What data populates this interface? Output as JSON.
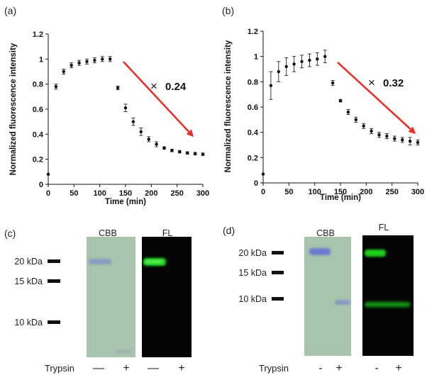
{
  "panels": {
    "a": "(a)",
    "b": "(b)",
    "c": "(c)",
    "d": "(d)"
  },
  "chart_data": [
    {
      "type": "scatter",
      "panel": "(a)",
      "xlabel": "Time (min)",
      "ylabel": "Normalized fluorescence intensity",
      "xlim": [
        0,
        300
      ],
      "ylim": [
        0,
        1.2
      ],
      "xticks": [
        "0",
        "50",
        "100",
        "150",
        "200",
        "250",
        "300"
      ],
      "yticks": [
        "0",
        "0.2",
        "0.4",
        "0.6",
        "0.8",
        "1",
        "1.2"
      ],
      "annotation": "0.24",
      "arrow_color": "#e8312a",
      "series": [
        {
          "x": [
            0,
            15,
            30,
            45,
            60,
            75,
            90,
            105,
            120,
            135,
            150,
            165,
            180,
            195,
            210,
            225,
            240,
            255,
            270,
            285,
            300
          ],
          "y": [
            0.08,
            0.78,
            0.9,
            0.95,
            0.97,
            0.98,
            0.99,
            1.0,
            1.0,
            0.77,
            0.61,
            0.5,
            0.42,
            0.36,
            0.32,
            0.29,
            0.27,
            0.26,
            0.25,
            0.245,
            0.24
          ],
          "err": [
            0,
            0.02,
            0.02,
            0.02,
            0.02,
            0.02,
            0.02,
            0.02,
            0.02,
            0.015,
            0.03,
            0.03,
            0.03,
            0.02,
            0.02,
            0.01,
            0.01,
            0.01,
            0.01,
            0.01,
            0.01
          ]
        }
      ]
    },
    {
      "type": "scatter",
      "panel": "(b)",
      "xlabel": "Time (min)",
      "ylabel": "Normalized fluorescence intensity",
      "xlim": [
        0,
        300
      ],
      "ylim": [
        0,
        1.2
      ],
      "xticks": [
        "0",
        "50",
        "100",
        "150",
        "200",
        "250",
        "300"
      ],
      "yticks": [
        "0",
        "0.2",
        "0.4",
        "0.6",
        "0.8",
        "1",
        "1.2"
      ],
      "annotation": "0.32",
      "arrow_color": "#e8312a",
      "series": [
        {
          "x": [
            0,
            15,
            30,
            45,
            60,
            75,
            90,
            105,
            120,
            135,
            150,
            165,
            180,
            195,
            210,
            225,
            240,
            255,
            270,
            285,
            300
          ],
          "y": [
            0.07,
            0.77,
            0.88,
            0.92,
            0.94,
            0.96,
            0.97,
            0.98,
            1.0,
            0.79,
            0.65,
            0.56,
            0.5,
            0.45,
            0.41,
            0.38,
            0.37,
            0.35,
            0.34,
            0.33,
            0.32
          ],
          "err": [
            0,
            0.11,
            0.08,
            0.07,
            0.06,
            0.05,
            0.05,
            0.05,
            0.05,
            0.02,
            0.01,
            0.02,
            0.02,
            0.02,
            0.02,
            0.02,
            0.02,
            0.02,
            0.02,
            0.03,
            0.02
          ]
        }
      ]
    }
  ],
  "gels": [
    {
      "panel": "(c)",
      "cbb_label": "CBB",
      "fl_label": "FL",
      "markers": [
        "20 kDa",
        "15 kDa",
        "10 kDa"
      ],
      "trypsin_label": "Trypsin",
      "signs": [
        "—",
        "+",
        "—",
        "+"
      ],
      "cbb_color": "#a9c4ac",
      "band_color": "#7b8fc9",
      "fl_color": "#1fd01f"
    },
    {
      "panel": "(d)",
      "cbb_label": "CBB",
      "fl_label": "FL",
      "markers": [
        "20 kDa",
        "15 kDa",
        "10 kDa"
      ],
      "trypsin_label": "Trypsin",
      "signs": [
        "-",
        "+",
        "-",
        "+"
      ],
      "cbb_color": "#a9c4ac",
      "band_color": "#5d6fd6",
      "fl_color": "#1fd01f"
    }
  ]
}
